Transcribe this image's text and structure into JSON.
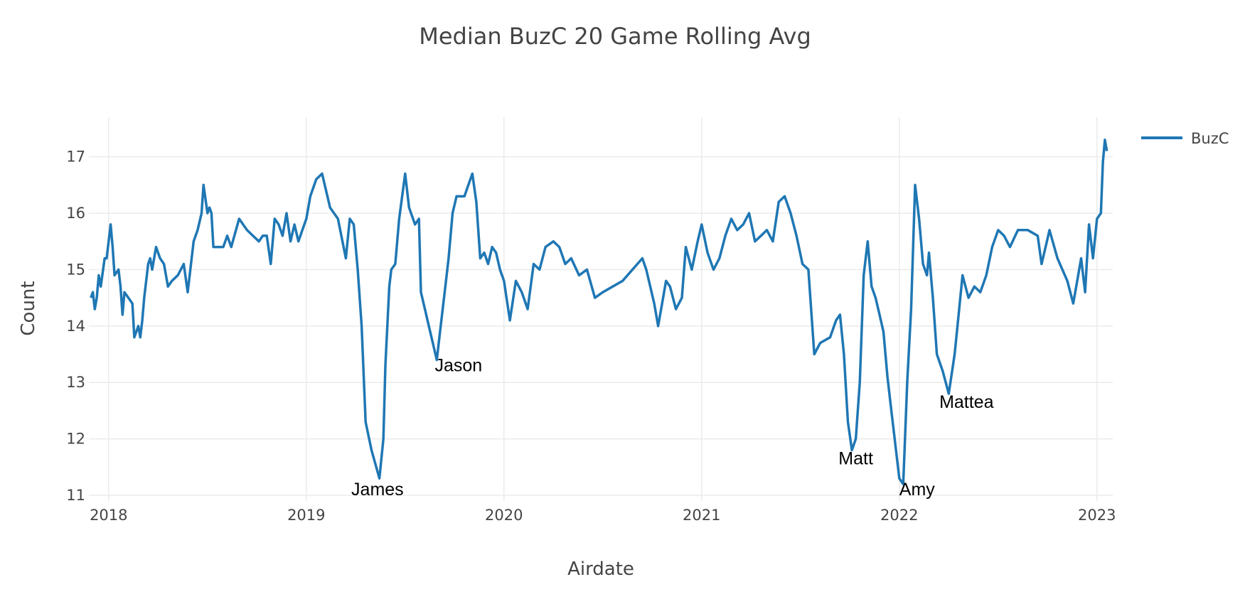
{
  "chart_data": {
    "type": "line",
    "title": "Median BuzC 20 Game Rolling Avg",
    "xlabel": "Airdate",
    "ylabel": "Count",
    "xlim": [
      2017.9,
      2023.08
    ],
    "ylim": [
      10.9,
      17.7
    ],
    "x_ticks": [
      2018,
      2019,
      2020,
      2021,
      2022,
      2023
    ],
    "x_tick_labels": [
      "2018",
      "2019",
      "2020",
      "2021",
      "2022",
      "2023"
    ],
    "y_ticks": [
      11,
      12,
      13,
      14,
      15,
      16,
      17
    ],
    "y_tick_labels": [
      "11",
      "12",
      "13",
      "14",
      "15",
      "16",
      "17"
    ],
    "grid": true,
    "legend_position": "top-right",
    "series": [
      {
        "name": "BuzC",
        "color": "#1f77b4",
        "x": [
          2017.91,
          2017.92,
          2017.93,
          2017.94,
          2017.95,
          2017.96,
          2017.98,
          2017.99,
          2018.0,
          2018.01,
          2018.02,
          2018.03,
          2018.05,
          2018.06,
          2018.07,
          2018.08,
          2018.1,
          2018.12,
          2018.13,
          2018.15,
          2018.16,
          2018.17,
          2018.18,
          2018.2,
          2018.21,
          2018.22,
          2018.24,
          2018.26,
          2018.28,
          2018.3,
          2018.32,
          2018.35,
          2018.38,
          2018.4,
          2018.43,
          2018.45,
          2018.47,
          2018.48,
          2018.5,
          2018.51,
          2018.52,
          2018.53,
          2018.55,
          2018.57,
          2018.58,
          2018.6,
          2018.62,
          2018.66,
          2018.7,
          2018.73,
          2018.76,
          2018.78,
          2018.8,
          2018.82,
          2018.84,
          2018.86,
          2018.88,
          2018.9,
          2018.92,
          2018.94,
          2018.96,
          2018.98,
          2019.0,
          2019.02,
          2019.05,
          2019.08,
          2019.12,
          2019.16,
          2019.2,
          2019.22,
          2019.24,
          2019.26,
          2019.28,
          2019.3,
          2019.33,
          2019.37,
          2019.39,
          2019.4,
          2019.42,
          2019.43,
          2019.45,
          2019.47,
          2019.5,
          2019.52,
          2019.54,
          2019.55,
          2019.57,
          2019.58,
          2019.6,
          2019.62,
          2019.64,
          2019.66,
          2019.68,
          2019.7,
          2019.72,
          2019.74,
          2019.76,
          2019.78,
          2019.8,
          2019.82,
          2019.84,
          2019.86,
          2019.88,
          2019.9,
          2019.92,
          2019.94,
          2019.96,
          2019.98,
          2020.0,
          2020.03,
          2020.06,
          2020.09,
          2020.12,
          2020.15,
          2020.18,
          2020.21,
          2020.25,
          2020.28,
          2020.31,
          2020.34,
          2020.38,
          2020.42,
          2020.46,
          2020.5,
          2020.6,
          2020.7,
          2020.72,
          2020.74,
          2020.76,
          2020.78,
          2020.8,
          2020.82,
          2020.84,
          2020.87,
          2020.9,
          2020.92,
          2020.95,
          2020.98,
          2021.0,
          2021.03,
          2021.06,
          2021.09,
          2021.12,
          2021.15,
          2021.18,
          2021.21,
          2021.24,
          2021.27,
          2021.3,
          2021.33,
          2021.36,
          2021.39,
          2021.42,
          2021.45,
          2021.48,
          2021.51,
          2021.54,
          2021.57,
          2021.6,
          2021.65,
          2021.68,
          2021.7,
          2021.72,
          2021.74,
          2021.76,
          2021.78,
          2021.8,
          2021.82,
          2021.84,
          2021.86,
          2021.88,
          2021.9,
          2021.92,
          2021.94,
          2021.96,
          2021.98,
          2022.0,
          2022.02,
          2022.04,
          2022.06,
          2022.07,
          2022.08,
          2022.1,
          2022.12,
          2022.14,
          2022.15,
          2022.17,
          2022.19,
          2022.22,
          2022.25,
          2022.28,
          2022.3,
          2022.32,
          2022.35,
          2022.38,
          2022.41,
          2022.44,
          2022.47,
          2022.5,
          2022.53,
          2022.56,
          2022.6,
          2022.65,
          2022.7,
          2022.72,
          2022.74,
          2022.76,
          2022.8,
          2022.85,
          2022.88,
          2022.9,
          2022.92,
          2022.94,
          2022.96,
          2022.98,
          2023.0,
          2023.02,
          2023.03,
          2023.04,
          2023.05
        ],
        "y": [
          14.5,
          14.6,
          14.3,
          14.5,
          14.9,
          14.7,
          15.2,
          15.2,
          15.5,
          15.8,
          15.4,
          14.9,
          15.0,
          14.7,
          14.2,
          14.6,
          14.5,
          14.4,
          13.8,
          14.0,
          13.8,
          14.1,
          14.5,
          15.1,
          15.2,
          15.0,
          15.4,
          15.2,
          15.1,
          14.7,
          14.8,
          14.9,
          15.1,
          14.6,
          15.5,
          15.7,
          16.0,
          16.5,
          16.0,
          16.1,
          16.0,
          15.4,
          15.4,
          15.4,
          15.4,
          15.6,
          15.4,
          15.9,
          15.7,
          15.6,
          15.5,
          15.6,
          15.6,
          15.1,
          15.9,
          15.8,
          15.6,
          16.0,
          15.5,
          15.8,
          15.5,
          15.7,
          15.9,
          16.3,
          16.6,
          16.7,
          16.1,
          15.9,
          15.2,
          15.9,
          15.8,
          15.0,
          14.0,
          12.3,
          11.8,
          11.3,
          12.0,
          13.3,
          14.7,
          15.0,
          15.1,
          15.9,
          16.7,
          16.1,
          15.9,
          15.8,
          15.9,
          14.6,
          14.3,
          14.0,
          13.7,
          13.4,
          14.0,
          14.6,
          15.2,
          16.0,
          16.3,
          16.3,
          16.3,
          16.5,
          16.7,
          16.2,
          15.2,
          15.3,
          15.1,
          15.4,
          15.3,
          15.0,
          14.8,
          14.1,
          14.8,
          14.6,
          14.3,
          15.1,
          15.0,
          15.4,
          15.5,
          15.4,
          15.1,
          15.2,
          14.9,
          15.0,
          14.5,
          14.6,
          14.8,
          15.2,
          15.0,
          14.7,
          14.4,
          14.0,
          14.4,
          14.8,
          14.7,
          14.3,
          14.5,
          15.4,
          15.0,
          15.5,
          15.8,
          15.3,
          15.0,
          15.2,
          15.6,
          15.9,
          15.7,
          15.8,
          16.0,
          15.5,
          15.6,
          15.7,
          15.5,
          16.2,
          16.3,
          16.0,
          15.6,
          15.1,
          15.0,
          13.5,
          13.7,
          13.8,
          14.1,
          14.2,
          13.5,
          12.3,
          11.8,
          12.0,
          13.0,
          14.9,
          15.5,
          14.7,
          14.5,
          14.2,
          13.9,
          13.1,
          12.5,
          11.9,
          11.3,
          11.2,
          13.0,
          14.3,
          15.4,
          16.5,
          15.9,
          15.1,
          14.9,
          15.3,
          14.5,
          13.5,
          13.2,
          12.8,
          13.5,
          14.2,
          14.9,
          14.5,
          14.7,
          14.6,
          14.9,
          15.4,
          15.7,
          15.6,
          15.4,
          15.7,
          15.7,
          15.6,
          15.1,
          15.4,
          15.7,
          15.2,
          14.8,
          14.4,
          14.8,
          15.2,
          14.6,
          15.8,
          15.2,
          15.9,
          16.0,
          16.9,
          17.3,
          17.1
        ]
      }
    ],
    "annotations": [
      {
        "text": "James",
        "x": 2019.36,
        "y": 11.0
      },
      {
        "text": "Jason",
        "x": 2019.77,
        "y": 13.2
      },
      {
        "text": "Matt",
        "x": 2021.78,
        "y": 11.55
      },
      {
        "text": "Amy",
        "x": 2022.09,
        "y": 11.0
      },
      {
        "text": "Mattea",
        "x": 2022.34,
        "y": 12.55
      }
    ]
  }
}
